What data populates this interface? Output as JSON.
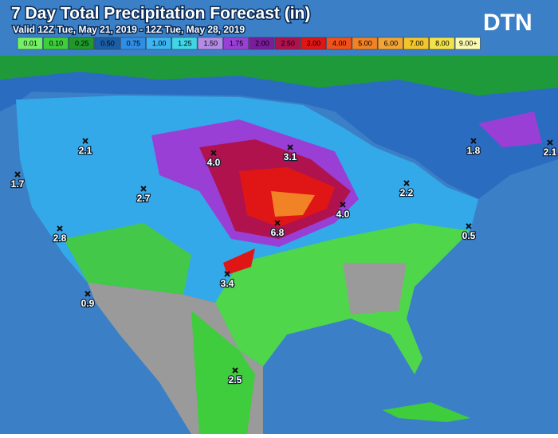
{
  "header": {
    "title": "7 Day Total Precipitation Forecast (in)",
    "valid": "Valid 12Z Tue, May 21, 2019 - 12Z Tue, May 28, 2019",
    "logo": "DTN"
  },
  "legend": {
    "items": [
      {
        "label": "0.01",
        "color": "#74f064"
      },
      {
        "label": "0.10",
        "color": "#3ccf3a"
      },
      {
        "label": "0.25",
        "color": "#1f9a2a"
      },
      {
        "label": "0.50",
        "color": "#1c5ea6"
      },
      {
        "label": "0.75",
        "color": "#2f8ee6"
      },
      {
        "label": "1.00",
        "color": "#3cb5f2"
      },
      {
        "label": "1.25",
        "color": "#40d6e6"
      },
      {
        "label": "1.50",
        "color": "#b48ce6"
      },
      {
        "label": "1.75",
        "color": "#9a3fd6"
      },
      {
        "label": "2.00",
        "color": "#7a1c9c"
      },
      {
        "label": "2.50",
        "color": "#b0124e"
      },
      {
        "label": "3.00",
        "color": "#e01616"
      },
      {
        "label": "4.00",
        "color": "#f2521a"
      },
      {
        "label": "5.00",
        "color": "#f28226"
      },
      {
        "label": "6.00",
        "color": "#f2a436"
      },
      {
        "label": "7.00",
        "color": "#f2c62a"
      },
      {
        "label": "8.00",
        "color": "#f2e24a"
      },
      {
        "label": "9.00+",
        "color": "#fafab0"
      }
    ]
  },
  "points": [
    {
      "label": "2.1"
    },
    {
      "label": "1.7"
    },
    {
      "label": "2.7"
    },
    {
      "label": "2.8"
    },
    {
      "label": "4.0"
    },
    {
      "label": "3.1"
    },
    {
      "label": "6.8"
    },
    {
      "label": "4.0"
    },
    {
      "label": "2.2"
    },
    {
      "label": "1.8"
    },
    {
      "label": "2.1"
    },
    {
      "label": "0.5"
    },
    {
      "label": "3.4"
    },
    {
      "label": "0.9"
    },
    {
      "label": "2.5"
    }
  ]
}
